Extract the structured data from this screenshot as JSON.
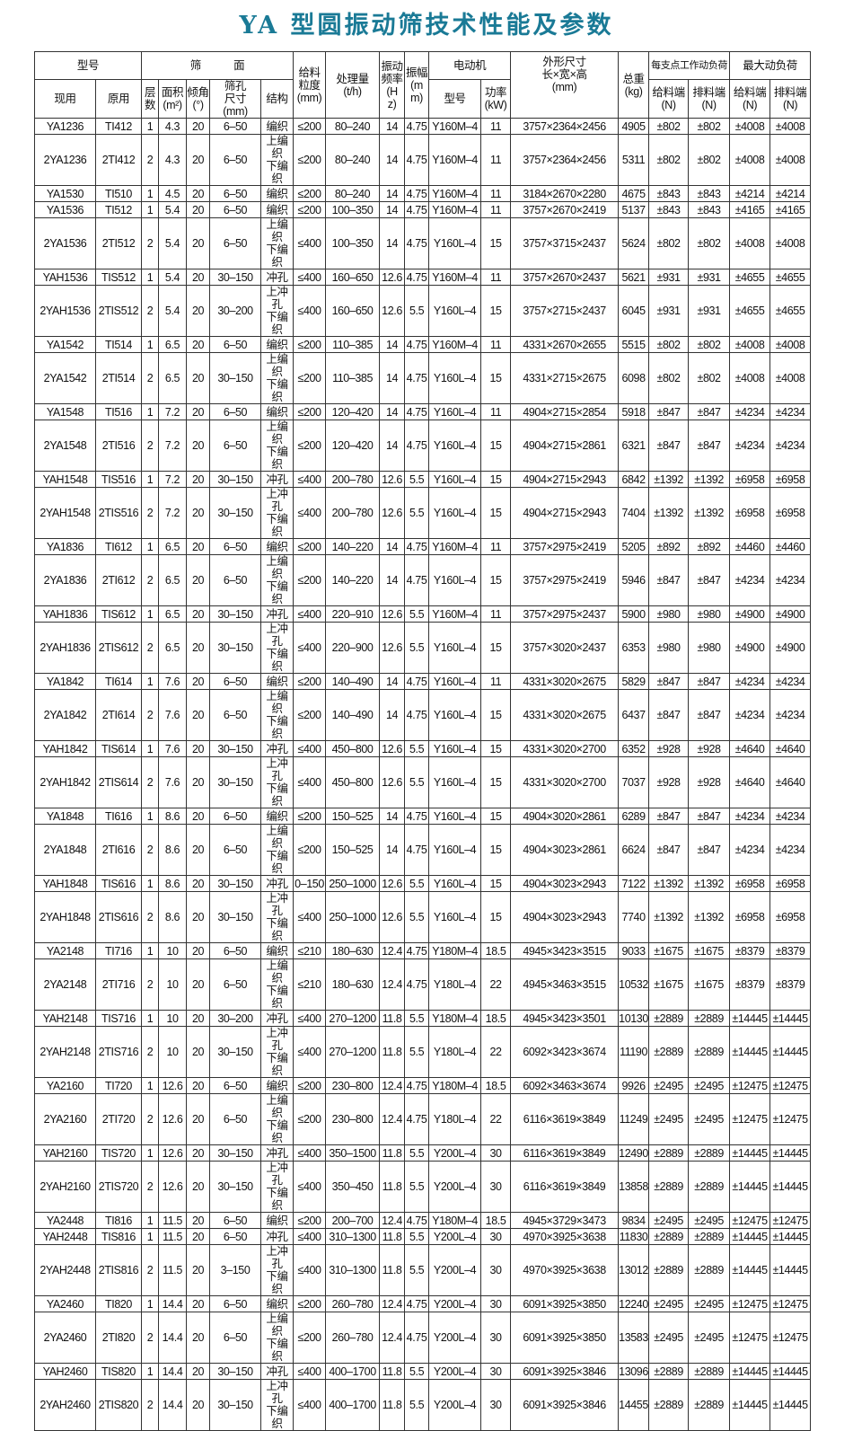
{
  "title": "YA 型圆振动筛技术性能及参数",
  "header": {
    "model": "型号",
    "current": "现用",
    "original": "原用",
    "screen": "筛　　　面",
    "layers": "层\n数",
    "area": "面积\n(m²)",
    "angle": "倾角\n(°)",
    "aperture": "筛孔\n尺寸\n(mm)",
    "structure": "结构",
    "feed_size": "给料\n粒度\n(mm)",
    "capacity": "处理量\n(t/h)",
    "frequency": "振动\n频率\n(H\nz)",
    "amplitude": "振幅\n(m\nm)",
    "motor": "电动机",
    "motor_model": "型号",
    "power": "功率\n(kW)",
    "dimensions": "外形尺寸\n长×宽×高\n(mm)",
    "weight": "总重\n(kg)",
    "support_load": "每支点工作动负荷",
    "max_load": "最大动负荷",
    "feed_end": "给料端\n(N)",
    "discharge_end": "排料端\n(N)"
  },
  "rows": [
    [
      "YA1236",
      "TI412",
      "1",
      "4.3",
      "20",
      "6–50",
      "编织",
      "≤200",
      "80–240",
      "14",
      "4.75",
      "Y160M–4",
      "11",
      "3757×2364×2456",
      "4905",
      "±802",
      "±802",
      "±4008",
      "±4008"
    ],
    [
      "2YA1236",
      "2TI412",
      "2",
      "4.3",
      "20",
      "6–50",
      "上编织\n下编织",
      "≤200",
      "80–240",
      "14",
      "4.75",
      "Y160M–4",
      "11",
      "3757×2364×2456",
      "5311",
      "±802",
      "±802",
      "±4008",
      "±4008"
    ],
    [
      "YA1530",
      "TI510",
      "1",
      "4.5",
      "20",
      "6–50",
      "编织",
      "≤200",
      "80–240",
      "14",
      "4.75",
      "Y160M–4",
      "11",
      "3184×2670×2280",
      "4675",
      "±843",
      "±843",
      "±4214",
      "±4214"
    ],
    [
      "YA1536",
      "TI512",
      "1",
      "5.4",
      "20",
      "6–50",
      "编织",
      "≤200",
      "100–350",
      "14",
      "4.75",
      "Y160M–4",
      "11",
      "3757×2670×2419",
      "5137",
      "±843",
      "±843",
      "±4165",
      "±4165"
    ],
    [
      "2YA1536",
      "2TI512",
      "2",
      "5.4",
      "20",
      "6–50",
      "上编织\n下编织",
      "≤400",
      "100–350",
      "14",
      "4.75",
      "Y160L–4",
      "15",
      "3757×3715×2437",
      "5624",
      "±802",
      "±802",
      "±4008",
      "±4008"
    ],
    [
      "YAH1536",
      "TIS512",
      "1",
      "5.4",
      "20",
      "30–150",
      "冲孔",
      "≤400",
      "160–650",
      "12.6",
      "4.75",
      "Y160M–4",
      "11",
      "3757×2670×2437",
      "5621",
      "±931",
      "±931",
      "±4655",
      "±4655"
    ],
    [
      "2YAH1536",
      "2TIS512",
      "2",
      "5.4",
      "20",
      "30–200",
      "上冲孔\n下编织",
      "≤400",
      "160–650",
      "12.6",
      "5.5",
      "Y160L–4",
      "15",
      "3757×2715×2437",
      "6045",
      "±931",
      "±931",
      "±4655",
      "±4655"
    ],
    [
      "YA1542",
      "TI514",
      "1",
      "6.5",
      "20",
      "6–50",
      "编织",
      "≤200",
      "110–385",
      "14",
      "4.75",
      "Y160M–4",
      "11",
      "4331×2670×2655",
      "5515",
      "±802",
      "±802",
      "±4008",
      "±4008"
    ],
    [
      "2YA1542",
      "2TI514",
      "2",
      "6.5",
      "20",
      "30–150",
      "上编织\n下编织",
      "≤200",
      "110–385",
      "14",
      "4.75",
      "Y160L–4",
      "15",
      "4331×2715×2675",
      "6098",
      "±802",
      "±802",
      "±4008",
      "±4008"
    ],
    [
      "YA1548",
      "TI516",
      "1",
      "7.2",
      "20",
      "6–50",
      "编织",
      "≤200",
      "120–420",
      "14",
      "4.75",
      "Y160L–4",
      "11",
      "4904×2715×2854",
      "5918",
      "±847",
      "±847",
      "±4234",
      "±4234"
    ],
    [
      "2YA1548",
      "2TI516",
      "2",
      "7.2",
      "20",
      "6–50",
      "上编织\n下编织",
      "≤200",
      "120–420",
      "14",
      "4.75",
      "Y160L–4",
      "15",
      "4904×2715×2861",
      "6321",
      "±847",
      "±847",
      "±4234",
      "±4234"
    ],
    [
      "YAH1548",
      "TIS516",
      "1",
      "7.2",
      "20",
      "30–150",
      "冲孔",
      "≤400",
      "200–780",
      "12.6",
      "5.5",
      "Y160L–4",
      "15",
      "4904×2715×2943",
      "6842",
      "±1392",
      "±1392",
      "±6958",
      "±6958"
    ],
    [
      "2YAH1548",
      "2TIS516",
      "2",
      "7.2",
      "20",
      "30–150",
      "上冲孔\n下编织",
      "≤400",
      "200–780",
      "12.6",
      "5.5",
      "Y160L–4",
      "15",
      "4904×2715×2943",
      "7404",
      "±1392",
      "±1392",
      "±6958",
      "±6958"
    ],
    [
      "YA1836",
      "TI612",
      "1",
      "6.5",
      "20",
      "6–50",
      "编织",
      "≤200",
      "140–220",
      "14",
      "4.75",
      "Y160M–4",
      "11",
      "3757×2975×2419",
      "5205",
      "±892",
      "±892",
      "±4460",
      "±4460"
    ],
    [
      "2YA1836",
      "2TI612",
      "2",
      "6.5",
      "20",
      "6–50",
      "上编织\n下编织",
      "≤200",
      "140–220",
      "14",
      "4.75",
      "Y160L–4",
      "15",
      "3757×2975×2419",
      "5946",
      "±847",
      "±847",
      "±4234",
      "±4234"
    ],
    [
      "YAH1836",
      "TIS612",
      "1",
      "6.5",
      "20",
      "30–150",
      "冲孔",
      "≤400",
      "220–910",
      "12.6",
      "5.5",
      "Y160M–4",
      "11",
      "3757×2975×2437",
      "5900",
      "±980",
      "±980",
      "±4900",
      "±4900"
    ],
    [
      "2YAH1836",
      "2TIS612",
      "2",
      "6.5",
      "20",
      "30–150",
      "上冲孔\n下编织",
      "≤400",
      "220–900",
      "12.6",
      "5.5",
      "Y160L–4",
      "15",
      "3757×3020×2437",
      "6353",
      "±980",
      "±980",
      "±4900",
      "±4900"
    ],
    [
      "YA1842",
      "TI614",
      "1",
      "7.6",
      "20",
      "6–50",
      "编织",
      "≤200",
      "140–490",
      "14",
      "4.75",
      "Y160L–4",
      "11",
      "4331×3020×2675",
      "5829",
      "±847",
      "±847",
      "±4234",
      "±4234"
    ],
    [
      "2YA1842",
      "2TI614",
      "2",
      "7.6",
      "20",
      "6–50",
      "上编织\n下编织",
      "≤200",
      "140–490",
      "14",
      "4.75",
      "Y160L–4",
      "15",
      "4331×3020×2675",
      "6437",
      "±847",
      "±847",
      "±4234",
      "±4234"
    ],
    [
      "YAH1842",
      "TIS614",
      "1",
      "7.6",
      "20",
      "30–150",
      "冲孔",
      "≤400",
      "450–800",
      "12.6",
      "5.5",
      "Y160L–4",
      "15",
      "4331×3020×2700",
      "6352",
      "±928",
      "±928",
      "±4640",
      "±4640"
    ],
    [
      "2YAH1842",
      "2TIS614",
      "2",
      "7.6",
      "20",
      "30–150",
      "上冲孔\n下编织",
      "≤400",
      "450–800",
      "12.6",
      "5.5",
      "Y160L–4",
      "15",
      "4331×3020×2700",
      "7037",
      "±928",
      "±928",
      "±4640",
      "±4640"
    ],
    [
      "YA1848",
      "TI616",
      "1",
      "8.6",
      "20",
      "6–50",
      "编织",
      "≤200",
      "150–525",
      "14",
      "4.75",
      "Y160L–4",
      "15",
      "4904×3020×2861",
      "6289",
      "±847",
      "±847",
      "±4234",
      "±4234"
    ],
    [
      "2YA1848",
      "2TI616",
      "2",
      "8.6",
      "20",
      "6–50",
      "上编织\n下编织",
      "≤200",
      "150–525",
      "14",
      "4.75",
      "Y160L–4",
      "15",
      "4904×3023×2861",
      "6624",
      "±847",
      "±847",
      "±4234",
      "±4234"
    ],
    [
      "YAH1848",
      "TIS616",
      "1",
      "8.6",
      "20",
      "30–150",
      "冲孔",
      "0–150",
      "250–1000",
      "12.6",
      "5.5",
      "Y160L–4",
      "15",
      "4904×3023×2943",
      "7122",
      "±1392",
      "±1392",
      "±6958",
      "±6958"
    ],
    [
      "2YAH1848",
      "2TIS616",
      "2",
      "8.6",
      "20",
      "30–150",
      "上冲孔\n下编织",
      "≤400",
      "250–1000",
      "12.6",
      "5.5",
      "Y160L–4",
      "15",
      "4904×3023×2943",
      "7740",
      "±1392",
      "±1392",
      "±6958",
      "±6958"
    ],
    [
      "YA2148",
      "TI716",
      "1",
      "10",
      "20",
      "6–50",
      "编织",
      "≤210",
      "180–630",
      "12.4",
      "4.75",
      "Y180M–4",
      "18.5",
      "4945×3423×3515",
      "9033",
      "±1675",
      "±1675",
      "±8379",
      "±8379"
    ],
    [
      "2YA2148",
      "2TI716",
      "2",
      "10",
      "20",
      "6–50",
      "上编织\n下编织",
      "≤210",
      "180–630",
      "12.4",
      "4.75",
      "Y180L–4",
      "22",
      "4945×3463×3515",
      "10532",
      "±1675",
      "±1675",
      "±8379",
      "±8379"
    ],
    [
      "YAH2148",
      "TIS716",
      "1",
      "10",
      "20",
      "30–200",
      "冲孔",
      "≤400",
      "270–1200",
      "11.8",
      "5.5",
      "Y180M–4",
      "18.5",
      "4945×3423×3501",
      "10130",
      "±2889",
      "±2889",
      "±14445",
      "±14445"
    ],
    [
      "2YAH2148",
      "2TIS716",
      "2",
      "10",
      "20",
      "30–150",
      "上冲孔\n下编织",
      "≤400",
      "270–1200",
      "11.8",
      "5.5",
      "Y180L–4",
      "22",
      "6092×3423×3674",
      "11190",
      "±2889",
      "±2889",
      "±14445",
      "±14445"
    ],
    [
      "YA2160",
      "TI720",
      "1",
      "12.6",
      "20",
      "6–50",
      "编织",
      "≤200",
      "230–800",
      "12.4",
      "4.75",
      "Y180M–4",
      "18.5",
      "6092×3463×3674",
      "9926",
      "±2495",
      "±2495",
      "±12475",
      "±12475"
    ],
    [
      "2YA2160",
      "2TI720",
      "2",
      "12.6",
      "20",
      "6–50",
      "上编织\n下编织",
      "≤200",
      "230–800",
      "12.4",
      "4.75",
      "Y180L–4",
      "22",
      "6116×3619×3849",
      "11249",
      "±2495",
      "±2495",
      "±12475",
      "±12475"
    ],
    [
      "YAH2160",
      "TIS720",
      "1",
      "12.6",
      "20",
      "30–150",
      "冲孔",
      "≤400",
      "350–1500",
      "11.8",
      "5.5",
      "Y200L–4",
      "30",
      "6116×3619×3849",
      "12490",
      "±2889",
      "±2889",
      "±14445",
      "±14445"
    ],
    [
      "2YAH2160",
      "2TIS720",
      "2",
      "12.6",
      "20",
      "30–150",
      "上冲孔\n下编织",
      "≤400",
      "350–450",
      "11.8",
      "5.5",
      "Y200L–4",
      "30",
      "6116×3619×3849",
      "13858",
      "±2889",
      "±2889",
      "±14445",
      "±14445"
    ],
    [
      "YA2448",
      "TI816",
      "1",
      "11.5",
      "20",
      "6–50",
      "编织",
      "≤200",
      "200–700",
      "12.4",
      "4.75",
      "Y180M–4",
      "18.5",
      "4945×3729×3473",
      "9834",
      "±2495",
      "±2495",
      "±12475",
      "±12475"
    ],
    [
      "YAH2448",
      "TIS816",
      "1",
      "11.5",
      "20",
      "6–50",
      "冲孔",
      "≤400",
      "310–1300",
      "11.8",
      "5.5",
      "Y200L–4",
      "30",
      "4970×3925×3638",
      "11830",
      "±2889",
      "±2889",
      "±14445",
      "±14445"
    ],
    [
      "2YAH2448",
      "2TIS816",
      "2",
      "11.5",
      "20",
      "3–150",
      "上冲孔\n下编织",
      "≤400",
      "310–1300",
      "11.8",
      "5.5",
      "Y200L–4",
      "30",
      "4970×3925×3638",
      "13012",
      "±2889",
      "±2889",
      "±14445",
      "±14445"
    ],
    [
      "YA2460",
      "TI820",
      "1",
      "14.4",
      "20",
      "6–50",
      "编织",
      "≤200",
      "260–780",
      "12.4",
      "4.75",
      "Y200L–4",
      "30",
      "6091×3925×3850",
      "12240",
      "±2495",
      "±2495",
      "±12475",
      "±12475"
    ],
    [
      "2YA2460",
      "2TI820",
      "2",
      "14.4",
      "20",
      "6–50",
      "上编织\n下编织",
      "≤200",
      "260–780",
      "12.4",
      "4.75",
      "Y200L–4",
      "30",
      "6091×3925×3850",
      "13583",
      "±2495",
      "±2495",
      "±12475",
      "±12475"
    ],
    [
      "YAH2460",
      "TIS820",
      "1",
      "14.4",
      "20",
      "30–150",
      "冲孔",
      "≤400",
      "400–1700",
      "11.8",
      "5.5",
      "Y200L–4",
      "30",
      "6091×3925×3846",
      "13096",
      "±2889",
      "±2889",
      "±14445",
      "±14445"
    ],
    [
      "2YAH2460",
      "2TIS820",
      "2",
      "14.4",
      "20",
      "30–150",
      "上冲孔\n下编织",
      "≤400",
      "400–1700",
      "11.8",
      "5.5",
      "Y200L–4",
      "30",
      "6091×3925×3846",
      "14455",
      "±2889",
      "±2889",
      "±14445",
      "±14445"
    ]
  ],
  "colors": {
    "title": "#1a7a96",
    "border": "#333333"
  }
}
